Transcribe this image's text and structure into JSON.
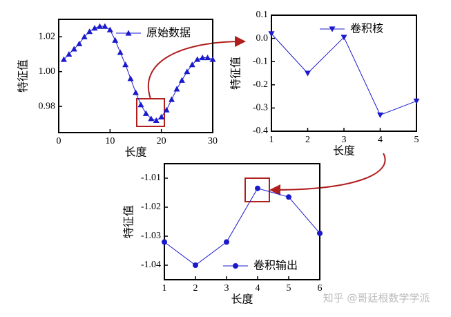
{
  "chart_data": [
    {
      "type": "line",
      "xlabel": "长度",
      "ylabel": "特征值",
      "legend_loc": "upper right",
      "marker": "triangle-up",
      "x": [
        1,
        2,
        3,
        4,
        5,
        6,
        7,
        8,
        9,
        10,
        11,
        12,
        13,
        14,
        15,
        16,
        17,
        18,
        19,
        20,
        21,
        22,
        23,
        24,
        25,
        26,
        27,
        28,
        29,
        30
      ],
      "series": [
        {
          "name": "原始数据",
          "color": "#1a1acc",
          "values": [
            1.007,
            1.01,
            1.013,
            1.016,
            1.02,
            1.023,
            1.025,
            1.026,
            1.026,
            1.024,
            1.018,
            1.011,
            1.004,
            0.996,
            0.988,
            0.981,
            0.976,
            0.973,
            0.972,
            0.974,
            0.978,
            0.984,
            0.99,
            0.995,
            1.0,
            1.004,
            1.007,
            1.008,
            1.008,
            1.007
          ]
        }
      ],
      "xlim": [
        0,
        30
      ],
      "xticks": [
        0,
        10,
        20,
        30
      ],
      "ylim": [
        0.965,
        1.03
      ],
      "yticks": [
        {
          "value": 0.98,
          "label": "0.98"
        },
        {
          "value": 1.0,
          "label": "1.00"
        },
        1.02
      ]
    },
    {
      "type": "line",
      "xlabel": "长度",
      "ylabel": "特征值",
      "legend_loc": "upper right",
      "marker": "triangle-down",
      "x": [
        1,
        2,
        3,
        4,
        5
      ],
      "series": [
        {
          "name": "卷积核",
          "color": "#1a1acc",
          "values": [
            0.02,
            -0.15,
            0.005,
            -0.33,
            -0.27
          ]
        }
      ],
      "xlim": [
        1,
        5
      ],
      "xticks": [
        1,
        2,
        3,
        4,
        5
      ],
      "ylim": [
        -0.4,
        0.1
      ],
      "yticks": [
        0.1,
        {
          "value": 0,
          "label": "0.0"
        },
        -0.1,
        -0.2,
        -0.3,
        -0.4
      ]
    },
    {
      "type": "line",
      "xlabel": "长度",
      "ylabel": "特征值",
      "legend_loc": "lower right",
      "marker": "circle",
      "x": [
        1,
        2,
        3,
        4,
        5,
        6
      ],
      "series": [
        {
          "name": "卷积输出",
          "color": "#1a1acc",
          "values": [
            -1.032,
            -1.04,
            -1.032,
            -1.0135,
            -1.0165,
            -1.029
          ]
        }
      ],
      "xlim": [
        1,
        6
      ],
      "xticks": [
        1,
        2,
        3,
        4,
        5,
        6
      ],
      "ylim": [
        -1.045,
        -1.005
      ],
      "yticks": [
        -1.01,
        -1.02,
        -1.03,
        -1.04
      ]
    }
  ],
  "watermark": "知乎 @哥廷根数学学派"
}
